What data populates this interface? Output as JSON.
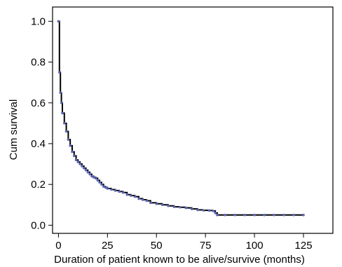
{
  "chart_data": {
    "type": "line",
    "title": "",
    "xlabel": "Duration of patient known to be alive/survive (months)",
    "ylabel": "Cum survival",
    "xlim": [
      -3,
      140
    ],
    "ylim": [
      -0.04,
      1.07
    ],
    "x_ticks": [
      0,
      25,
      50,
      75,
      100,
      125
    ],
    "y_ticks": [
      0.0,
      0.2,
      0.4,
      0.6,
      0.8,
      1.0
    ],
    "x_tick_labels": [
      "0",
      "25",
      "50",
      "75",
      "100",
      "125"
    ],
    "y_tick_labels": [
      "0.0",
      "0.2",
      "0.4",
      "0.6",
      "0.8",
      "1.0"
    ],
    "grid": false,
    "legend": "none",
    "step": true,
    "line_color": "#000000",
    "censor_color": "#5a64b4",
    "x": [
      0,
      0.5,
      1,
      1.5,
      2,
      3,
      4,
      5,
      6,
      7,
      8,
      9,
      10,
      11,
      12,
      13,
      14,
      15,
      16,
      17,
      18,
      19,
      20,
      21,
      22,
      23,
      24,
      25,
      27,
      29,
      31,
      33,
      35,
      37,
      39,
      41,
      43,
      45,
      47,
      50,
      53,
      56,
      59,
      62,
      65,
      68,
      71,
      74,
      77,
      79,
      80,
      81,
      85,
      90,
      95,
      100,
      105,
      110,
      115,
      120,
      125
    ],
    "values": [
      1.0,
      0.75,
      0.65,
      0.6,
      0.55,
      0.5,
      0.46,
      0.42,
      0.39,
      0.36,
      0.34,
      0.32,
      0.31,
      0.3,
      0.29,
      0.28,
      0.27,
      0.26,
      0.25,
      0.24,
      0.235,
      0.23,
      0.22,
      0.21,
      0.2,
      0.19,
      0.185,
      0.18,
      0.175,
      0.17,
      0.165,
      0.16,
      0.15,
      0.145,
      0.14,
      0.13,
      0.125,
      0.12,
      0.11,
      0.105,
      0.1,
      0.095,
      0.09,
      0.088,
      0.085,
      0.08,
      0.075,
      0.073,
      0.072,
      0.07,
      0.06,
      0.05,
      0.05,
      0.05,
      0.05,
      0.05,
      0.05,
      0.05,
      0.05,
      0.05,
      0.05
    ]
  }
}
